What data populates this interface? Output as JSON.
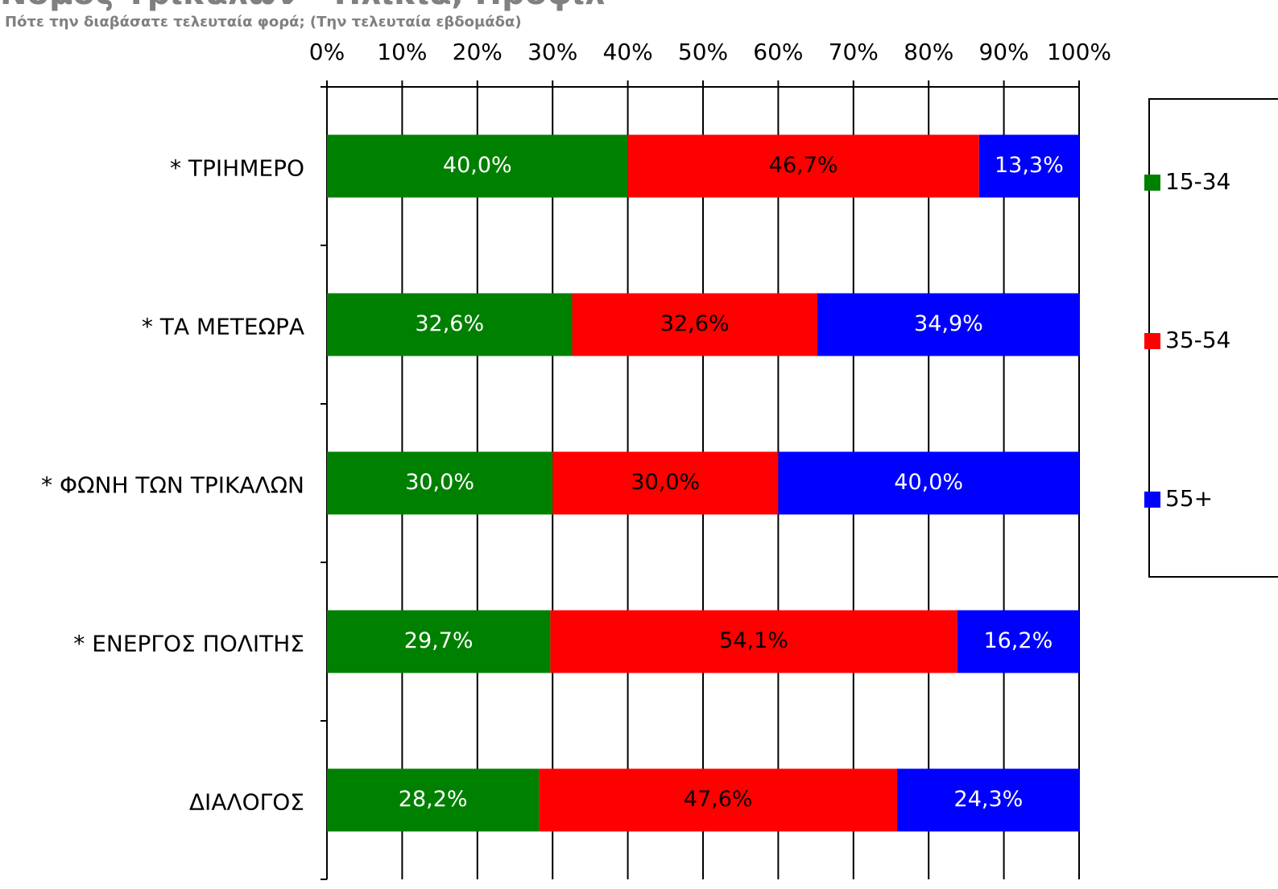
{
  "chart_data": {
    "type": "stacked_bar_horizontal",
    "title": "Νομός Τρικάλων - Ηλικία, Προφίλ",
    "subtitle": "Πότε την διαβάσατε τελευταία φορά; (Την τελευταία εβδομάδα)",
    "categories": [
      "*  ΤΡΙΗΜΕΡΟ",
      "* ΤΑ ΜΕΤΕΩΡΑ",
      "* ΦΩΝΗ ΤΩΝ ΤΡΙΚΑΛΩΝ",
      "* ΕΝΕΡΓΟΣ ΠΟΛΙΤΗΣ",
      "ΔΙΑΛΟΓΟΣ"
    ],
    "series": [
      {
        "name": "15-34",
        "color": "#008000",
        "values": [
          40.0,
          32.6,
          30.0,
          29.7,
          28.2
        ],
        "value_labels": [
          "40,0%",
          "32,6%",
          "30,0%",
          "29,7%",
          "28,2%"
        ]
      },
      {
        "name": "35-54",
        "color": "#ff0000",
        "values": [
          46.7,
          32.6,
          30.0,
          54.1,
          47.6
        ],
        "value_labels": [
          "46,7%",
          "32,6%",
          "30,0%",
          "54,1%",
          "47,6%"
        ]
      },
      {
        "name": "55+",
        "color": "#0000ff",
        "values": [
          13.3,
          34.9,
          40.0,
          16.2,
          24.3
        ],
        "value_labels": [
          "13,3%",
          "34,9%",
          "40,0%",
          "16,2%",
          "24,3%"
        ]
      }
    ],
    "xlim": [
      0,
      100
    ],
    "xticks": [
      {
        "value": 0,
        "label": "0%"
      },
      {
        "value": 10,
        "label": "10%"
      },
      {
        "value": 20,
        "label": "20%"
      },
      {
        "value": 30,
        "label": "30%"
      },
      {
        "value": 40,
        "label": "40%"
      },
      {
        "value": 50,
        "label": "50%"
      },
      {
        "value": 60,
        "label": "60%"
      },
      {
        "value": 70,
        "label": "70%"
      },
      {
        "value": 80,
        "label": "80%"
      },
      {
        "value": 90,
        "label": "90%"
      },
      {
        "value": 100,
        "label": "100%"
      }
    ],
    "grid": true,
    "legend": "right"
  }
}
